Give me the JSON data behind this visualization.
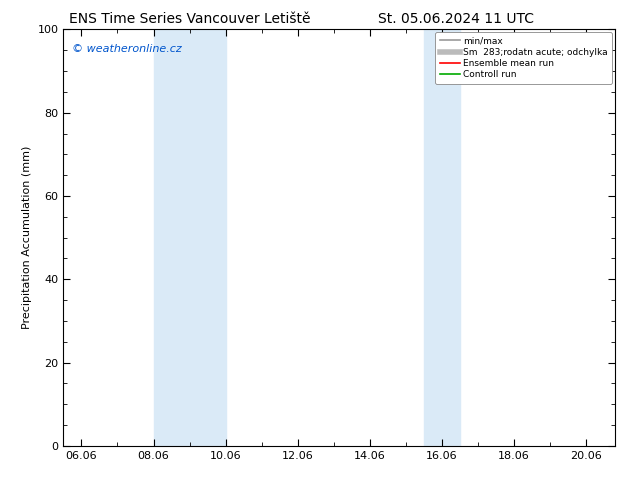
{
  "title_left": "ENS Time Series Vancouver Letiště",
  "title_right": "St. 05.06.2024 11 UTC",
  "ylabel": "Precipitation Accumulation (mm)",
  "watermark": "© weatheronline.cz",
  "watermark_color": "#0055cc",
  "ylim": [
    0,
    100
  ],
  "yticks": [
    0,
    20,
    40,
    60,
    80,
    100
  ],
  "xlim_start": 5.5,
  "xlim_end": 20.8,
  "xtick_labels": [
    "06.06",
    "08.06",
    "10.06",
    "12.06",
    "14.06",
    "16.06",
    "18.06",
    "20.06"
  ],
  "xtick_positions": [
    6.0,
    8.0,
    10.0,
    12.0,
    14.0,
    16.0,
    18.0,
    20.0
  ],
  "shaded_bands": [
    {
      "xmin": 8.0,
      "xmax": 10.0
    },
    {
      "xmin": 15.5,
      "xmax": 16.5
    }
  ],
  "band_color": "#daeaf7",
  "legend_entries": [
    {
      "label": "min/max",
      "color": "#999999",
      "lw": 1.2
    },
    {
      "label": "Sm  283;rodatn acute; odchylka",
      "color": "#bbbbbb",
      "lw": 4.0
    },
    {
      "label": "Ensemble mean run",
      "color": "#ff0000",
      "lw": 1.2
    },
    {
      "label": "Controll run",
      "color": "#00aa00",
      "lw": 1.2
    }
  ],
  "bg_color": "#ffffff",
  "axes_color": "#000000",
  "font_size": 8,
  "title_font_size": 10
}
